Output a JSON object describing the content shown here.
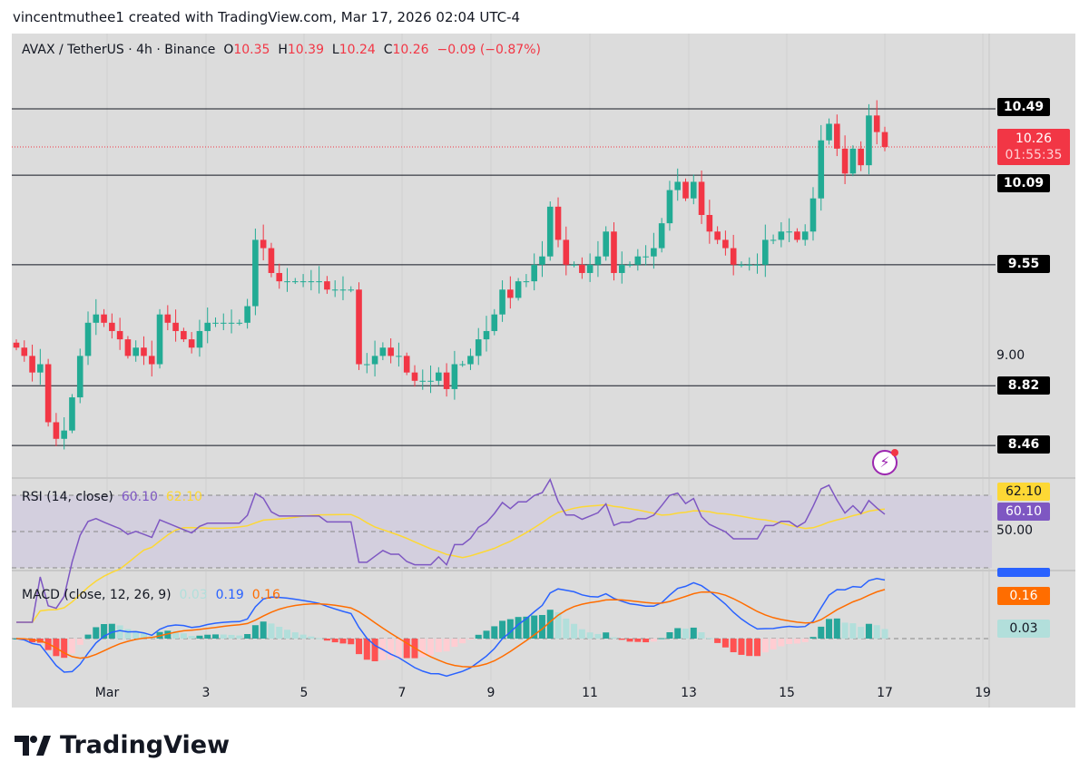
{
  "header": "vincentmuthee1 created with TradingView.com, Mar 17, 2026 02:04 UTC-4",
  "legend": {
    "symbol": "AVAX / TetherUS · 4h · Binance",
    "o_label": "O",
    "o": "10.35",
    "h_label": "H",
    "h": "10.39",
    "l_label": "L",
    "l": "10.24",
    "c_label": "C",
    "c": "10.26",
    "change": "−0.09 (−0.87%)"
  },
  "rsi": {
    "label": "RSI (14, close)",
    "value": "60.10",
    "ma": "62.10",
    "axis": "50.00"
  },
  "macd": {
    "label": "MACD (close, 12, 26, 9)",
    "hist": "0.03",
    "macd": "0.19",
    "signal": "0.16"
  },
  "price_tags": {
    "last": "10.26",
    "countdown": "01:55:35",
    "axis_900": "9.00"
  },
  "levels": [
    "10.49",
    "10.09",
    "9.55",
    "8.82",
    "8.46"
  ],
  "colors": {
    "up": "#22ab94",
    "down": "#f23645",
    "rsi": "#7e57c2",
    "rsi_ma": "#fdd835",
    "macd": "#2962ff",
    "signal": "#ff6d00",
    "hist_up": "#26a69a",
    "hist_down": "#ff5252"
  },
  "logo": "TradingView",
  "chart_data": {
    "type": "candlestick",
    "title": "AVAX / TetherUS · 4h · Binance",
    "x_ticks": [
      "Mar",
      "3",
      "5",
      "7",
      "9",
      "11",
      "13",
      "15",
      "17",
      "19"
    ],
    "ylim": [
      8.3,
      10.7
    ],
    "levels": [
      10.49,
      10.09,
      9.55,
      8.82,
      8.46
    ],
    "closes": [
      9.05,
      9.0,
      8.9,
      8.95,
      8.6,
      8.5,
      8.55,
      8.75,
      9.0,
      9.2,
      9.25,
      9.2,
      9.15,
      9.1,
      9.0,
      9.05,
      9.0,
      8.95,
      9.25,
      9.2,
      9.15,
      9.1,
      9.05,
      9.15,
      9.2,
      9.2,
      9.2,
      9.2,
      9.2,
      9.3,
      9.7,
      9.65,
      9.5,
      9.45,
      9.45,
      9.45,
      9.45,
      9.45,
      9.45,
      9.4,
      9.4,
      9.4,
      9.4,
      8.95,
      8.95,
      9.0,
      9.05,
      9.0,
      9.0,
      8.9,
      8.85,
      8.85,
      8.85,
      8.9,
      8.8,
      8.95,
      8.95,
      9.0,
      9.1,
      9.15,
      9.25,
      9.4,
      9.35,
      9.45,
      9.45,
      9.55,
      9.6,
      9.9,
      9.7,
      9.55,
      9.55,
      9.5,
      9.55,
      9.6,
      9.75,
      9.5,
      9.55,
      9.55,
      9.6,
      9.6,
      9.65,
      9.8,
      10.0,
      10.05,
      9.95,
      10.05,
      9.85,
      9.75,
      9.7,
      9.65,
      9.55,
      9.55,
      9.55,
      9.55,
      9.7,
      9.7,
      9.75,
      9.75,
      9.7,
      9.75,
      9.95,
      10.3,
      10.4,
      10.25,
      10.1,
      10.25,
      10.15,
      10.45,
      10.35,
      10.26
    ]
  }
}
